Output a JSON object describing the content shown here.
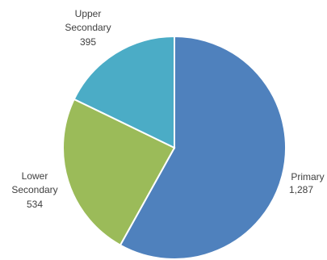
{
  "chart_data": {
    "type": "pie",
    "title": "",
    "slices": [
      {
        "name": "Primary",
        "value": 1287,
        "value_label": "1,287",
        "color": "#4F81BD"
      },
      {
        "name": "Lower",
        "name_line2": "Secondary",
        "value": 534,
        "value_label": "534",
        "color": "#9BBB59"
      },
      {
        "name": "Upper",
        "name_line2": "Secondary",
        "value": 395,
        "value_label": "395",
        "color": "#4BACC6"
      }
    ],
    "start_angle_deg": 0,
    "direction": "clockwise",
    "legend": "none"
  }
}
